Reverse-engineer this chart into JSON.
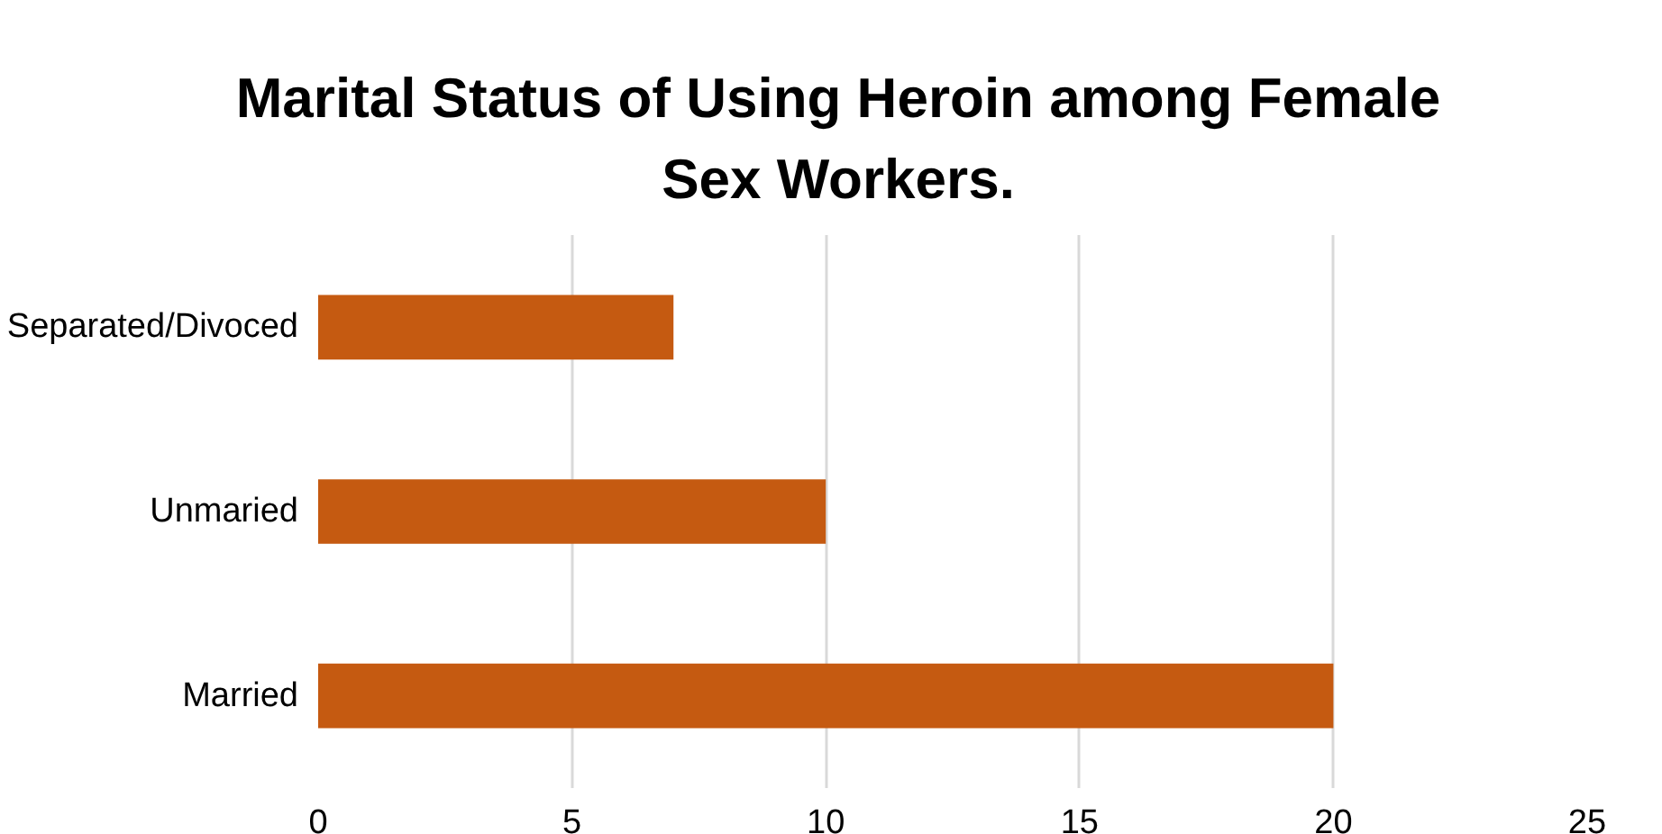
{
  "chart_data": {
    "type": "bar",
    "orientation": "horizontal",
    "title": "Marital Status of Using Heroin among Female Sex Workers.",
    "categories": [
      "Separated/Divoced",
      "Unmaried",
      "Married"
    ],
    "values": [
      7,
      10,
      20
    ],
    "color": "#c55a11",
    "xlim": [
      0,
      25
    ],
    "xticks": [
      0,
      5,
      10,
      15,
      20,
      25
    ],
    "grid": "x"
  }
}
